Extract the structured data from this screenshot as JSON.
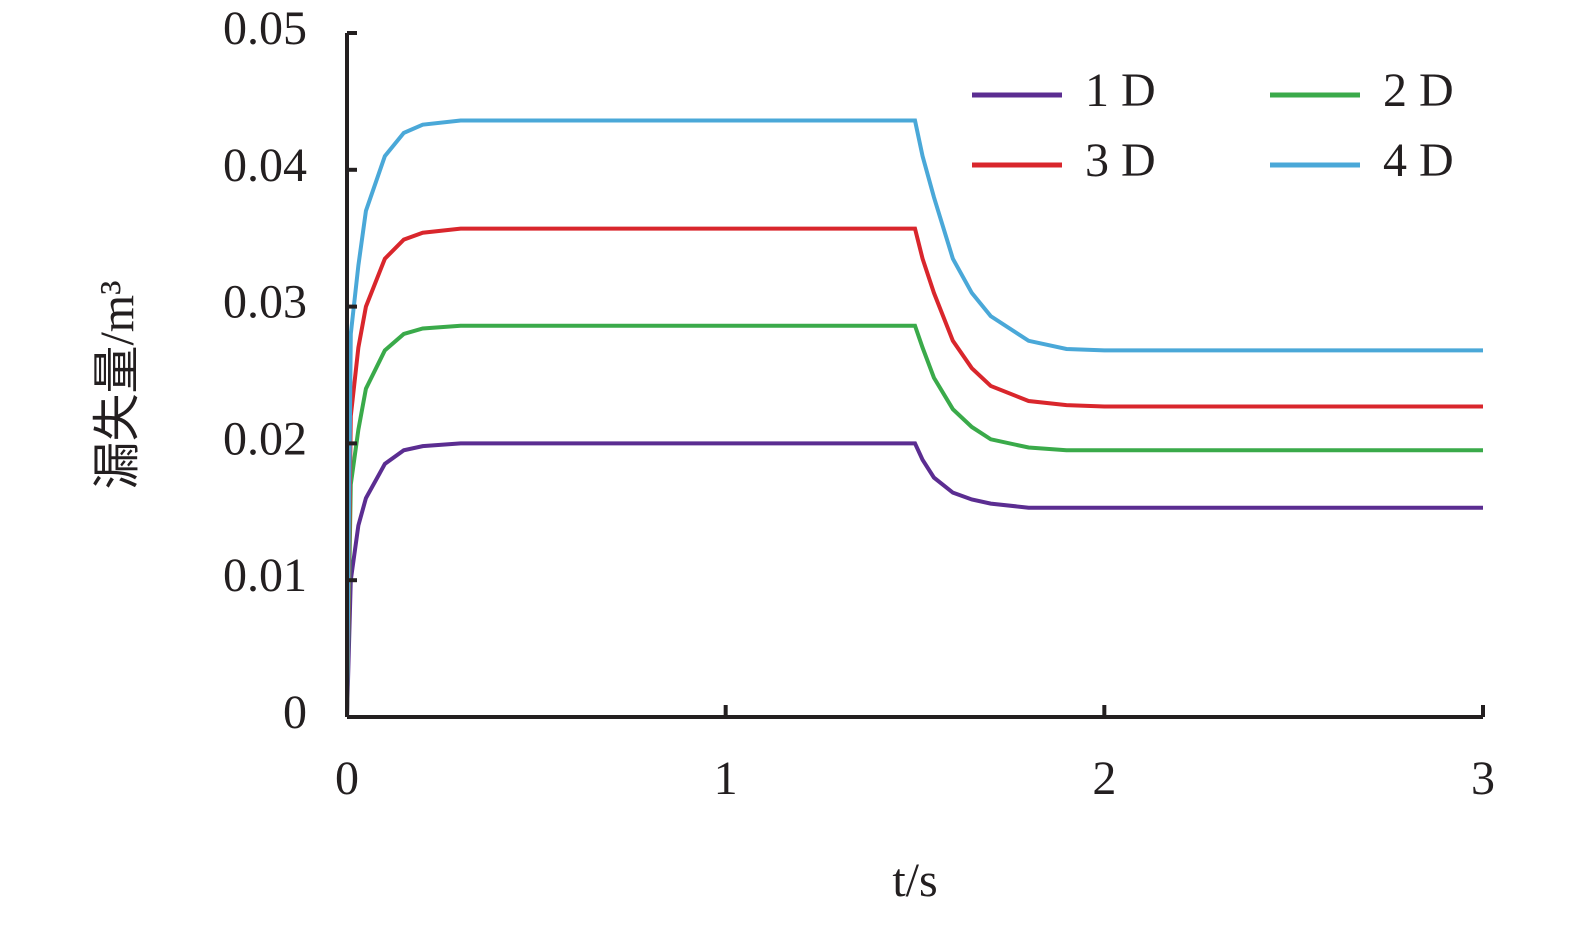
{
  "chart_data": {
    "type": "line",
    "xlabel": "t/s",
    "ylabel": "漏失量/m³",
    "x": [
      0,
      0.01,
      0.03,
      0.05,
      0.1,
      0.15,
      0.2,
      0.3,
      0.5,
      1.0,
      1.5,
      1.52,
      1.55,
      1.6,
      1.65,
      1.7,
      1.8,
      1.9,
      2.0,
      2.5,
      3.0
    ],
    "series": [
      {
        "name": "1 D",
        "color": "#5b2d91",
        "values": [
          0,
          0.01,
          0.014,
          0.016,
          0.0185,
          0.0195,
          0.0198,
          0.02,
          0.02,
          0.02,
          0.02,
          0.0188,
          0.0175,
          0.0164,
          0.0159,
          0.0156,
          0.0153,
          0.0153,
          0.0153,
          0.0153,
          0.0153
        ]
      },
      {
        "name": "2 D",
        "color": "#3aaa4a",
        "values": [
          0,
          0.017,
          0.021,
          0.024,
          0.0268,
          0.028,
          0.0284,
          0.0286,
          0.0286,
          0.0286,
          0.0286,
          0.027,
          0.0248,
          0.0225,
          0.0212,
          0.0203,
          0.0197,
          0.0195,
          0.0195,
          0.0195,
          0.0195
        ]
      },
      {
        "name": "3 D",
        "color": "#d9262c",
        "values": [
          0,
          0.022,
          0.027,
          0.03,
          0.0335,
          0.0349,
          0.0354,
          0.0357,
          0.0357,
          0.0357,
          0.0357,
          0.0335,
          0.031,
          0.0275,
          0.0255,
          0.0242,
          0.0231,
          0.0228,
          0.0227,
          0.0227,
          0.0227
        ]
      },
      {
        "name": "4 D",
        "color": "#4aa8d8",
        "values": [
          0,
          0.028,
          0.033,
          0.037,
          0.041,
          0.0427,
          0.0433,
          0.0436,
          0.0436,
          0.0436,
          0.0436,
          0.041,
          0.038,
          0.0335,
          0.031,
          0.0293,
          0.0275,
          0.0269,
          0.0268,
          0.0268,
          0.0268
        ]
      }
    ],
    "xlim": [
      0,
      3
    ],
    "xticks": [
      0,
      1,
      2,
      3
    ],
    "ylim": [
      0,
      0.05
    ],
    "yticks": [
      0,
      0.01,
      0.02,
      0.03,
      0.04,
      0.05
    ],
    "grid": false,
    "legend": "upper right"
  }
}
